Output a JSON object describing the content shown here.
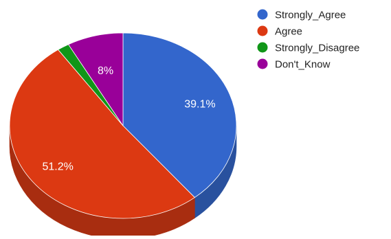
{
  "chart_data": {
    "type": "pie",
    "three_d": true,
    "start_angle_deg": 0,
    "direction": "clockwise",
    "slices": [
      {
        "label": "Strongly_Agree",
        "value": 39.1,
        "display": "39.1%",
        "color": "#3366cc",
        "side_color": "#29519e"
      },
      {
        "label": "Agree",
        "value": 51.2,
        "display": "51.2%",
        "color": "#dc3912",
        "side_color": "#a82d10"
      },
      {
        "label": "Strongly_Disagree",
        "value": 1.7,
        "display": "",
        "color": "#109618",
        "side_color": "#0c7212"
      },
      {
        "label": "Don't_Know",
        "value": 8.0,
        "display": "8%",
        "color": "#990099",
        "side_color": "#730073"
      }
    ],
    "legend": {
      "position": "right",
      "entries": [
        "Strongly_Agree",
        "Agree",
        "Strongly_Disagree",
        "Don't_Know"
      ]
    },
    "label_color": "#ffffff",
    "legend_text_color": "#222222"
  }
}
